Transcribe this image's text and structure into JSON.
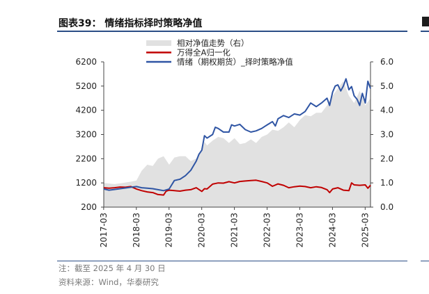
{
  "header": {
    "title": "图表39：  情绪指标择时策略净值"
  },
  "footer": {
    "note": "注：截至 2025 年 4 月 30 日",
    "source": "资料来源：Wind，华泰研究"
  },
  "colors": {
    "area": "#e1e1e1",
    "index": "#c00000",
    "strategy": "#2f55a4",
    "rule": "#2a4d86"
  },
  "chart_data": {
    "type": "line",
    "x_start": 2017.17,
    "x_end": 2025.33,
    "x_tick_labels": [
      "2017-03",
      "2018-03",
      "2019-03",
      "2020-03",
      "2021-03",
      "2022-03",
      "2023-03",
      "2024-03",
      "2025-03"
    ],
    "left_axis": {
      "ylim": [
        200,
        6200
      ],
      "ticks": [
        200,
        1200,
        2200,
        3200,
        4200,
        5200,
        6200
      ]
    },
    "right_axis": {
      "ylim": [
        0.0,
        6.0
      ],
      "ticks": [
        "0.0",
        "1.0",
        "2.0",
        "3.0",
        "4.0",
        "5.0",
        "6.0"
      ]
    },
    "legend": {
      "position": "top",
      "items": [
        "相对净值走势（右）",
        "万得全A归一化",
        "情绪（期权期货）_择时策略净值"
      ]
    },
    "series": [
      {
        "name": "相对净值走势（右）",
        "type": "area",
        "axis": "right",
        "x": [
          2017.17,
          2017.5,
          2017.75,
          2018.0,
          2018.17,
          2018.33,
          2018.5,
          2018.67,
          2018.83,
          2019.0,
          2019.17,
          2019.33,
          2019.5,
          2019.67,
          2019.83,
          2020.0,
          2020.17,
          2020.25,
          2020.33,
          2020.5,
          2020.67,
          2020.83,
          2021.0,
          2021.17,
          2021.33,
          2021.5,
          2021.67,
          2021.83,
          2022.0,
          2022.17,
          2022.33,
          2022.5,
          2022.67,
          2022.83,
          2023.0,
          2023.17,
          2023.33,
          2023.5,
          2023.67,
          2023.83,
          2024.0,
          2024.17,
          2024.33,
          2024.5,
          2024.67,
          2024.83,
          2025.0,
          2025.17,
          2025.33
        ],
        "values": [
          1.0,
          0.95,
          1.0,
          1.05,
          1.1,
          1.5,
          1.75,
          1.7,
          2.0,
          2.1,
          1.75,
          2.05,
          2.1,
          2.1,
          1.9,
          2.0,
          2.3,
          2.7,
          2.55,
          2.75,
          2.9,
          2.85,
          2.65,
          2.85,
          2.6,
          2.65,
          2.8,
          2.65,
          2.9,
          3.0,
          3.2,
          3.15,
          3.3,
          3.5,
          3.3,
          3.6,
          3.8,
          3.75,
          3.9,
          3.9,
          4.2,
          4.6,
          4.9,
          5.2,
          4.6,
          4.3,
          4.8,
          4.2,
          4.5
        ]
      },
      {
        "name": "万得全A归一化",
        "type": "line",
        "axis": "left",
        "x": [
          2017.17,
          2017.33,
          2017.5,
          2017.67,
          2017.83,
          2018.0,
          2018.17,
          2018.33,
          2018.5,
          2018.67,
          2018.83,
          2019.0,
          2019.08,
          2019.17,
          2019.33,
          2019.5,
          2019.67,
          2019.83,
          2020.0,
          2020.17,
          2020.25,
          2020.33,
          2020.5,
          2020.67,
          2020.83,
          2021.0,
          2021.17,
          2021.33,
          2021.5,
          2021.67,
          2021.83,
          2022.0,
          2022.17,
          2022.33,
          2022.5,
          2022.67,
          2022.83,
          2023.0,
          2023.17,
          2023.33,
          2023.5,
          2023.67,
          2023.83,
          2024.0,
          2024.08,
          2024.17,
          2024.33,
          2024.5,
          2024.67,
          2024.75,
          2024.83,
          2025.0,
          2025.17,
          2025.25,
          2025.33
        ],
        "values": [
          1000,
          980,
          1000,
          1030,
          1020,
          1050,
          950,
          880,
          830,
          800,
          720,
          700,
          860,
          900,
          880,
          860,
          900,
          920,
          1000,
          850,
          960,
          950,
          1150,
          1200,
          1190,
          1250,
          1200,
          1260,
          1280,
          1300,
          1310,
          1260,
          1200,
          1060,
          1160,
          1100,
          1000,
          1040,
          1070,
          1050,
          1000,
          1040,
          1010,
          920,
          800,
          950,
          1000,
          900,
          880,
          1200,
          1120,
          1100,
          1120,
          980,
          1100
        ]
      },
      {
        "name": "情绪（期权期货）_择时策略净值",
        "type": "line",
        "axis": "left",
        "x": [
          2017.17,
          2017.33,
          2017.5,
          2017.67,
          2017.83,
          2018.0,
          2018.17,
          2018.33,
          2018.5,
          2018.67,
          2018.83,
          2019.0,
          2019.17,
          2019.33,
          2019.5,
          2019.67,
          2019.83,
          2020.0,
          2020.08,
          2020.17,
          2020.25,
          2020.33,
          2020.5,
          2020.58,
          2020.67,
          2020.83,
          2021.0,
          2021.08,
          2021.17,
          2021.33,
          2021.5,
          2021.67,
          2021.83,
          2022.0,
          2022.17,
          2022.33,
          2022.42,
          2022.5,
          2022.67,
          2022.83,
          2023.0,
          2023.17,
          2023.33,
          2023.5,
          2023.67,
          2023.83,
          2024.0,
          2024.08,
          2024.17,
          2024.25,
          2024.33,
          2024.42,
          2024.5,
          2024.58,
          2024.67,
          2024.75,
          2024.83,
          2024.92,
          2025.0,
          2025.08,
          2025.17,
          2025.25,
          2025.33
        ],
        "values": [
          950,
          900,
          930,
          960,
          990,
          1020,
          1050,
          1000,
          980,
          960,
          920,
          880,
          950,
          1300,
          1350,
          1500,
          1720,
          2100,
          2380,
          2550,
          3150,
          3050,
          3200,
          3500,
          3450,
          3300,
          3300,
          3600,
          3550,
          3620,
          3400,
          3300,
          3350,
          3450,
          3600,
          3730,
          3550,
          3850,
          3980,
          3900,
          4050,
          4000,
          4150,
          4500,
          4350,
          4500,
          4700,
          4400,
          4950,
          5200,
          5250,
          5000,
          5200,
          5500,
          5050,
          5180,
          4800,
          4650,
          4400,
          4900,
          4500,
          5400,
          5100
        ]
      }
    ]
  }
}
